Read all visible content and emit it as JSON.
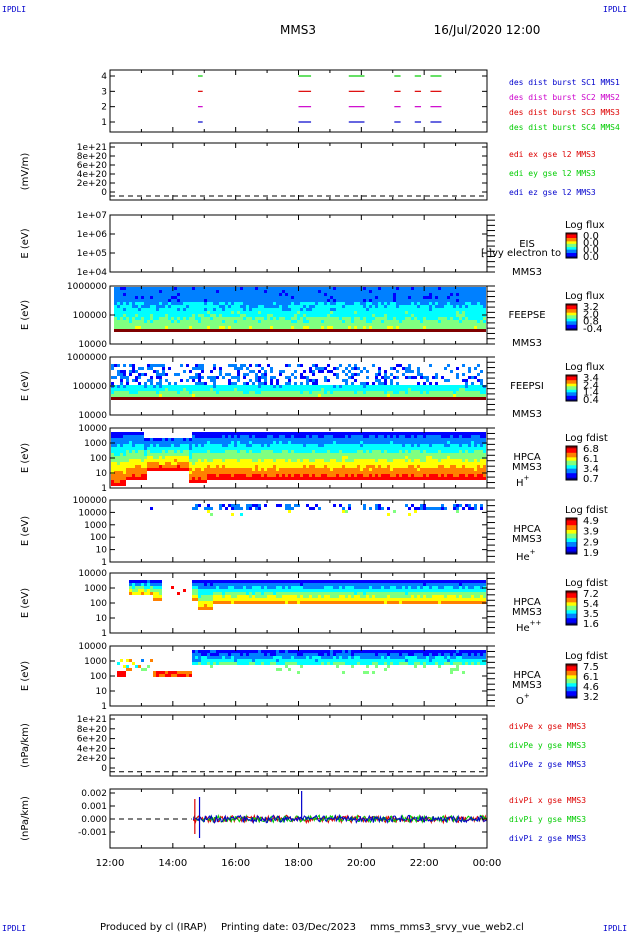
{
  "corner_tags": {
    "top_left": "IPDLI",
    "top_right": "IPDLI",
    "bottom_left": "IPDLI",
    "bottom_right": "IPDLI"
  },
  "header": {
    "title": "MMS3",
    "datetime": "16/Jul/2020 12:00"
  },
  "footer": {
    "produced_by": "Produced by cl (IRAP)",
    "printing_date": "Printing date: 03/Dec/2023",
    "script_name": "mms_mms3_srvy_vue_web2.cl"
  },
  "colors": {
    "blue": "#0000cc",
    "magenta": "#cc00cc",
    "red": "#dd0000",
    "green": "#00cc00",
    "colorbar": [
      "#000080",
      "#0000ff",
      "#0080ff",
      "#00ffff",
      "#80ff80",
      "#ffff00",
      "#ff8000",
      "#ff0000",
      "#800000"
    ]
  },
  "chart_data": {
    "type": "multi-panel time series",
    "x_axis": {
      "start": "12:00",
      "end": "00:00",
      "ticks": [
        "12:00",
        "14:00",
        "16:00",
        "18:00",
        "20:00",
        "22:00",
        "00:00"
      ]
    },
    "panels": [
      {
        "id": "burst",
        "type": "line",
        "ylabel": "",
        "yticks": [
          "4",
          "3",
          "2",
          "1"
        ],
        "ylim": [
          0.5,
          4.5
        ],
        "legend": [
          {
            "label": "des dist burst SC1 MMS1",
            "color": "#0000cc"
          },
          {
            "label": "des dist burst SC2 MMS2",
            "color": "#cc00cc"
          },
          {
            "label": "des dist burst SC3 MMS3",
            "color": "#dd0000"
          },
          {
            "label": "des dist burst SC4 MMS4",
            "color": "#00cc00"
          }
        ],
        "intervals_hours": [
          [
            14.8,
            14.95
          ],
          [
            18.0,
            18.4
          ],
          [
            19.6,
            20.1
          ],
          [
            21.05,
            21.25
          ],
          [
            21.7,
            21.9
          ],
          [
            22.2,
            22.55
          ]
        ]
      },
      {
        "id": "edi",
        "type": "line",
        "ylabel": "(mV/m)",
        "yticks": [
          "1e+21",
          "8e+20",
          "6e+20",
          "4e+20",
          "2e+20",
          "0"
        ],
        "ylim": [
          0,
          1e+21
        ],
        "legend": [
          {
            "label": "edi ex gse l2 MMS3",
            "color": "#dd0000"
          },
          {
            "label": "edi ey gse l2 MMS3",
            "color": "#00cc00"
          },
          {
            "label": "edi ez gse l2 MMS3",
            "color": "#0000cc"
          }
        ]
      },
      {
        "id": "eis",
        "type": "heatmap",
        "ylabel": "E (eV)",
        "yticks": [
          "1e+07",
          "1e+06",
          "1e+05",
          "1e+04"
        ],
        "ylim": [
          10000,
          10000000
        ],
        "labels": [
          "EIS",
          "MMS3"
        ],
        "overlay_text": "[ ]vy electron to",
        "colorbar": {
          "title": "Log flux",
          "ticks": [
            "0.0",
            "0.0",
            "0.0",
            "0.0"
          ]
        }
      },
      {
        "id": "feeps_e",
        "type": "heatmap",
        "ylabel": "E (eV)",
        "yticks": [
          "1000000",
          "100000",
          "10000"
        ],
        "ylim": [
          10000,
          1000000
        ],
        "labels": [
          "FEEPSE",
          "MMS3"
        ],
        "colorbar": {
          "title": "Log flux",
          "ticks": [
            "3.2",
            "2.0",
            "0.8",
            "-0.4"
          ]
        }
      },
      {
        "id": "feeps_i",
        "type": "heatmap",
        "ylabel": "E (eV)",
        "yticks": [
          "1000000",
          "100000",
          "10000"
        ],
        "ylim": [
          10000,
          1000000
        ],
        "labels": [
          "FEEPSI",
          "MMS3"
        ],
        "colorbar": {
          "title": "Log flux",
          "ticks": [
            "3.4",
            "2.4",
            "1.4",
            "0.4"
          ]
        }
      },
      {
        "id": "hpca_h",
        "type": "heatmap",
        "ylabel": "E (eV)",
        "yticks": [
          "10000",
          "1000",
          "100",
          "10",
          "1"
        ],
        "ylim": [
          1,
          40000
        ],
        "labels": [
          "HPCA",
          "MMS3"
        ],
        "species": {
          "base": "H",
          "sup": "+"
        },
        "colorbar": {
          "title": "Log fdist",
          "ticks": [
            "6.8",
            "6.1",
            "3.4",
            "0.7"
          ]
        }
      },
      {
        "id": "hpca_he1",
        "type": "heatmap",
        "ylabel": "E (eV)",
        "yticks": [
          "100000",
          "10000",
          "1000",
          "100",
          "10",
          "1"
        ],
        "ylim": [
          1,
          100000
        ],
        "labels": [
          "HPCA",
          "MMS3"
        ],
        "species": {
          "base": "He",
          "sup": "+"
        },
        "colorbar": {
          "title": "Log fdist",
          "ticks": [
            "4.9",
            "3.9",
            "2.9",
            "1.9"
          ]
        }
      },
      {
        "id": "hpca_he2",
        "type": "heatmap",
        "ylabel": "E (eV)",
        "yticks": [
          "10000",
          "1000",
          "100",
          "10",
          "1"
        ],
        "ylim": [
          1,
          40000
        ],
        "labels": [
          "HPCA",
          "MMS3"
        ],
        "species": {
          "base": "He",
          "sup": "++"
        },
        "colorbar": {
          "title": "Log fdist",
          "ticks": [
            "7.2",
            "5.4",
            "3.5",
            "1.6"
          ]
        }
      },
      {
        "id": "hpca_o",
        "type": "heatmap",
        "ylabel": "E (eV)",
        "yticks": [
          "10000",
          "1000",
          "100",
          "10",
          "1"
        ],
        "ylim": [
          1,
          40000
        ],
        "labels": [
          "HPCA",
          "MMS3"
        ],
        "species": {
          "base": "O",
          "sup": "+"
        },
        "colorbar": {
          "title": "Log fdist",
          "ticks": [
            "7.5",
            "6.1",
            "4.6",
            "3.2"
          ]
        }
      },
      {
        "id": "divpe",
        "type": "line",
        "ylabel": "(nPa/km)",
        "yticks": [
          "1e+21",
          "8e+20",
          "6e+20",
          "4e+20",
          "2e+20",
          "0"
        ],
        "ylim": [
          0,
          1e+21
        ],
        "legend": [
          {
            "label": "divPe x gse MMS3",
            "color": "#dd0000"
          },
          {
            "label": "divPe y gse MMS3",
            "color": "#00cc00"
          },
          {
            "label": "divPe z gse MMS3",
            "color": "#0000cc"
          }
        ]
      },
      {
        "id": "divpi",
        "type": "line",
        "ylabel": "(nPa/km)",
        "yticks": [
          "0.002",
          "0.001",
          "0.000",
          "-0.001"
        ],
        "ylim": [
          -0.0017,
          0.002
        ],
        "legend": [
          {
            "label": "divPi x gse MMS3",
            "color": "#dd0000"
          },
          {
            "label": "divPi y gse MMS3",
            "color": "#00cc00"
          },
          {
            "label": "divPi z gse MMS3",
            "color": "#0000cc"
          }
        ]
      }
    ]
  }
}
